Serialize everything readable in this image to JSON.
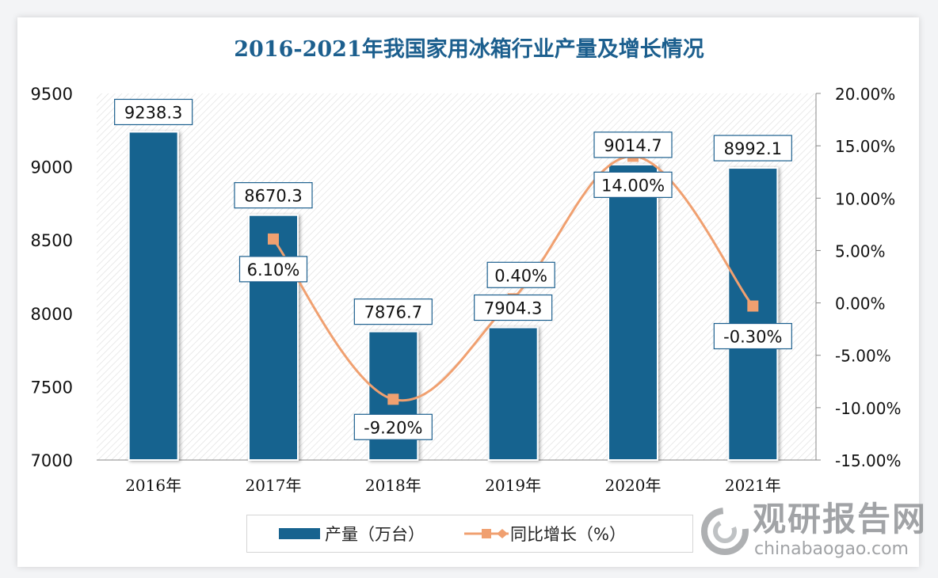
{
  "chart_data": {
    "type": "bar+line",
    "title": "2016-2021年我国家用冰箱行业产量及增长情况",
    "categories": [
      "2016年",
      "2017年",
      "2018年",
      "2019年",
      "2020年",
      "2021年"
    ],
    "series": [
      {
        "name": "产量（万台）",
        "type": "bar",
        "axis": "left",
        "values": [
          9238.3,
          8670.3,
          7876.7,
          7904.3,
          9014.7,
          8992.1
        ],
        "labels": [
          "9238.3",
          "8670.3",
          "7876.7",
          "7904.3",
          "9014.7",
          "8992.1"
        ],
        "color": "#17638f"
      },
      {
        "name": "同比增长（%）",
        "type": "line",
        "axis": "right",
        "smooth": true,
        "values": [
          null,
          6.1,
          -9.2,
          0.4,
          14.0,
          -0.3
        ],
        "labels": [
          "",
          "6.10%",
          "-9.20%",
          "0.40%",
          "14.00%",
          "-0.30%"
        ],
        "color": "#f0a070"
      }
    ],
    "y_left": {
      "range": [
        7000,
        9500
      ],
      "ticks": [
        "7000",
        "7500",
        "8000",
        "8500",
        "9000",
        "9500"
      ]
    },
    "y_right": {
      "range": [
        -15,
        20
      ],
      "ticks": [
        "-15.00%",
        "-10.00%",
        "-5.00%",
        "0.00%",
        "5.00%",
        "10.00%",
        "15.00%",
        "20.00%"
      ]
    },
    "grid": false,
    "legend_placement": "bottom"
  },
  "watermark": {
    "cn": "观研报告网",
    "en": "chinabaogao.com"
  }
}
